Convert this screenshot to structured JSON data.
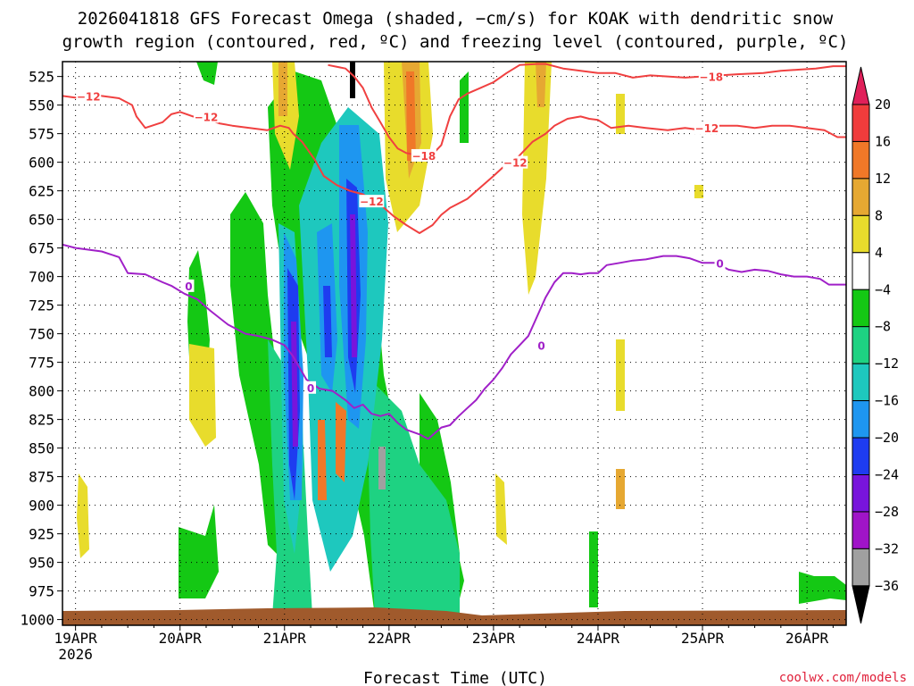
{
  "title_line1": "2026041818 GFS Forecast Omega (shaded, −cm/s) for KOAK with dendritic snow",
  "title_line2": "growth region (contoured, red, ºC) and freezing level (contoured, purple, ºC)",
  "credit": "coolwx.com/models",
  "chart_data": {
    "type": "heatmap",
    "xlabel": "Forecast Time (UTC)",
    "ylabel": "Pressure (hPa)",
    "y_reversed": true,
    "ylim": [
      1005,
      512
    ],
    "x_unit": "hours since 2026-04-19 00Z",
    "xlim": [
      -3,
      177
    ],
    "x_ticks": [
      {
        "x": 0,
        "label": "19APR",
        "sublabel": "2026"
      },
      {
        "x": 24,
        "label": "20APR"
      },
      {
        "x": 48,
        "label": "21APR"
      },
      {
        "x": 72,
        "label": "22APR"
      },
      {
        "x": 96,
        "label": "23APR"
      },
      {
        "x": 120,
        "label": "24APR"
      },
      {
        "x": 144,
        "label": "25APR"
      },
      {
        "x": 168,
        "label": "26APR"
      }
    ],
    "y_ticks": [
      525,
      550,
      575,
      600,
      625,
      650,
      675,
      700,
      725,
      750,
      775,
      800,
      825,
      850,
      875,
      900,
      925,
      950,
      975,
      1000
    ],
    "grid": true,
    "colorbar": {
      "levels": [
        20,
        16,
        12,
        8,
        4,
        -4,
        -8,
        -12,
        -16,
        -20,
        -24,
        -28,
        -32,
        -36
      ],
      "colors": [
        "#e0205a",
        "#f03c3c",
        "#f07828",
        "#e6a832",
        "#e8dc2c",
        "#ffffff",
        "#14c814",
        "#1ed282",
        "#1ec8be",
        "#1e96f0",
        "#1e3cf0",
        "#7814dc",
        "#a014c8",
        "#a0a0a0",
        "#000000"
      ]
    },
    "freezing_level": {
      "label": "0",
      "color": "#a020c8",
      "points": [
        [
          -3,
          672
        ],
        [
          0,
          675
        ],
        [
          6,
          678
        ],
        [
          10,
          683
        ],
        [
          12,
          697
        ],
        [
          16,
          698
        ],
        [
          20,
          705
        ],
        [
          22,
          708
        ],
        [
          25,
          715
        ],
        [
          28,
          720
        ],
        [
          31,
          730
        ],
        [
          35,
          742
        ],
        [
          39,
          750
        ],
        [
          42,
          752
        ],
        [
          45,
          755
        ],
        [
          48,
          760
        ],
        [
          50,
          770
        ],
        [
          53,
          790
        ],
        [
          56,
          798
        ],
        [
          59,
          800
        ],
        [
          62,
          808
        ],
        [
          64,
          815
        ],
        [
          66,
          812
        ],
        [
          68,
          820
        ],
        [
          70,
          822
        ],
        [
          72,
          820
        ],
        [
          74,
          828
        ],
        [
          76,
          834
        ],
        [
          79,
          838
        ],
        [
          81,
          842
        ],
        [
          84,
          832
        ],
        [
          86,
          830
        ],
        [
          88,
          822
        ],
        [
          90,
          815
        ],
        [
          92,
          808
        ],
        [
          94,
          798
        ],
        [
          96,
          790
        ],
        [
          98,
          780
        ],
        [
          100,
          768
        ],
        [
          102,
          760
        ],
        [
          104,
          752
        ],
        [
          106,
          735
        ],
        [
          108,
          718
        ],
        [
          110,
          705
        ],
        [
          112,
          697
        ],
        [
          114,
          697
        ],
        [
          116,
          698
        ],
        [
          118,
          697
        ],
        [
          120,
          697
        ],
        [
          122,
          690
        ],
        [
          125,
          688
        ],
        [
          128,
          686
        ],
        [
          131,
          685
        ],
        [
          135,
          682
        ],
        [
          138,
          682
        ],
        [
          141,
          684
        ],
        [
          144,
          688
        ],
        [
          147,
          688
        ],
        [
          150,
          694
        ],
        [
          153,
          696
        ],
        [
          156,
          694
        ],
        [
          159,
          695
        ],
        [
          162,
          698
        ],
        [
          165,
          700
        ],
        [
          168,
          700
        ],
        [
          171,
          702
        ],
        [
          173,
          707
        ],
        [
          177,
          707
        ]
      ],
      "labels": [
        [
          26,
          708
        ],
        [
          54,
          797
        ],
        [
          107,
          760
        ],
        [
          148,
          688
        ]
      ]
    },
    "dgz_contours": [
      {
        "level": -12,
        "color": "#f04040",
        "points": [
          [
            -3,
            542
          ],
          [
            1,
            544
          ],
          [
            3,
            540
          ],
          [
            6,
            542
          ],
          [
            10,
            544
          ],
          [
            13,
            550
          ],
          [
            14,
            560
          ],
          [
            16,
            570
          ],
          [
            20,
            565
          ],
          [
            22,
            558
          ],
          [
            24,
            556
          ],
          [
            27,
            560
          ],
          [
            30,
            562
          ],
          [
            33,
            566
          ],
          [
            36,
            568
          ],
          [
            40,
            570
          ],
          [
            44,
            572
          ],
          [
            47,
            568
          ],
          [
            49,
            570
          ],
          [
            50,
            575
          ],
          [
            52,
            582
          ],
          [
            55,
            598
          ],
          [
            57,
            612
          ],
          [
            60,
            620
          ],
          [
            63,
            625
          ],
          [
            66,
            628
          ],
          [
            70,
            637
          ],
          [
            73,
            647
          ],
          [
            76,
            655
          ],
          [
            79,
            662
          ],
          [
            82,
            655
          ],
          [
            84,
            646
          ],
          [
            86,
            640
          ],
          [
            90,
            632
          ],
          [
            93,
            622
          ],
          [
            96,
            612
          ],
          [
            98,
            605
          ],
          [
            101,
            598
          ],
          [
            103,
            590
          ],
          [
            105,
            582
          ],
          [
            108,
            575
          ],
          [
            110,
            568
          ],
          [
            113,
            562
          ],
          [
            116,
            560
          ],
          [
            118,
            562
          ],
          [
            120,
            563
          ],
          [
            123,
            570
          ],
          [
            127,
            568
          ],
          [
            131,
            570
          ],
          [
            136,
            572
          ],
          [
            140,
            570
          ],
          [
            144,
            572
          ],
          [
            148,
            568
          ],
          [
            152,
            568
          ],
          [
            156,
            570
          ],
          [
            160,
            568
          ],
          [
            164,
            568
          ],
          [
            168,
            570
          ],
          [
            172,
            572
          ],
          [
            175,
            578
          ],
          [
            177,
            578
          ]
        ],
        "labels": [
          [
            3,
            542
          ],
          [
            30,
            560
          ],
          [
            68,
            634
          ],
          [
            101,
            600
          ],
          [
            145,
            570
          ]
        ]
      },
      {
        "level": -18,
        "color": "#f04040",
        "points": [
          [
            58,
            515
          ],
          [
            62,
            518
          ],
          [
            64,
            525
          ],
          [
            66,
            535
          ],
          [
            68,
            552
          ],
          [
            70,
            565
          ],
          [
            72,
            578
          ],
          [
            74,
            588
          ],
          [
            76,
            592
          ],
          [
            79,
            594
          ],
          [
            82,
            593
          ],
          [
            84,
            585
          ],
          [
            86,
            560
          ],
          [
            88,
            545
          ],
          [
            90,
            540
          ],
          [
            93,
            535
          ],
          [
            96,
            530
          ],
          [
            99,
            522
          ],
          [
            102,
            515
          ],
          [
            106,
            514
          ],
          [
            108,
            514
          ],
          [
            112,
            518
          ],
          [
            116,
            520
          ],
          [
            120,
            522
          ],
          [
            124,
            522
          ],
          [
            128,
            526
          ],
          [
            132,
            524
          ],
          [
            136,
            525
          ],
          [
            140,
            526
          ],
          [
            144,
            525
          ],
          [
            148,
            524
          ],
          [
            152,
            523
          ],
          [
            158,
            522
          ],
          [
            162,
            520
          ],
          [
            166,
            519
          ],
          [
            170,
            518
          ],
          [
            174,
            516
          ],
          [
            177,
            516
          ]
        ],
        "labels": [
          [
            80,
            594
          ],
          [
            146,
            525
          ]
        ]
      }
    ]
  }
}
